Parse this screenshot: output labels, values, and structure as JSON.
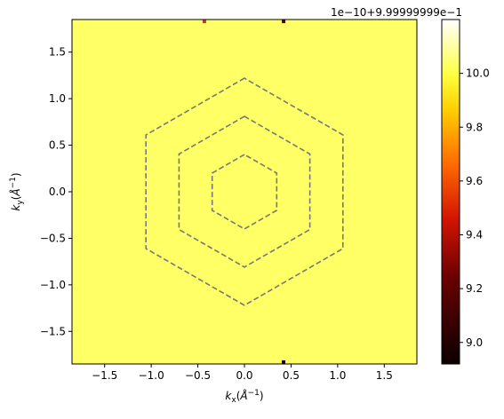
{
  "chart_data": {
    "type": "heatmap",
    "title": "",
    "xlabel": "k_x(Å^-1)",
    "ylabel": "k_y(Å^-1)",
    "xlim": [
      -1.85,
      1.85
    ],
    "ylim": [
      -1.85,
      1.85
    ],
    "x_ticks": [
      -1.5,
      -1.0,
      -0.5,
      0.0,
      0.5,
      1.0,
      1.5
    ],
    "x_tick_labels": [
      "−1.5",
      "−1.0",
      "−0.5",
      "0.0",
      "0.5",
      "1.0",
      "1.5"
    ],
    "y_ticks": [
      1.5,
      1.0,
      0.5,
      0.0,
      -0.5,
      -1.0,
      -1.5
    ],
    "y_tick_labels": [
      "1.5",
      "1.0",
      "0.5",
      "0.0",
      "−0.5",
      "−1.0",
      "−1.5"
    ],
    "field_value": 10.0,
    "field_color": "#ffff66",
    "colormap": "hot",
    "colorbar": {
      "range": [
        8.92,
        10.2
      ],
      "ticks": [
        9.0,
        9.2,
        9.4,
        9.6,
        9.8,
        10.0
      ],
      "tick_labels": [
        "9.0",
        "9.2",
        "9.4",
        "9.6",
        "9.8",
        "10.0"
      ],
      "offset_label": "1e−10+9.99999999e−1"
    },
    "hexagons": {
      "circumradii": [
        0.4,
        0.81,
        1.22
      ],
      "style": "dashed",
      "color": "#777777"
    },
    "spots": [
      {
        "x": -0.43,
        "y": 1.83,
        "color": "#cc3333"
      },
      {
        "x": 0.42,
        "y": 1.83,
        "color": "#550000"
      },
      {
        "x": 0.42,
        "y": -1.83,
        "color": "#110000"
      }
    ]
  }
}
